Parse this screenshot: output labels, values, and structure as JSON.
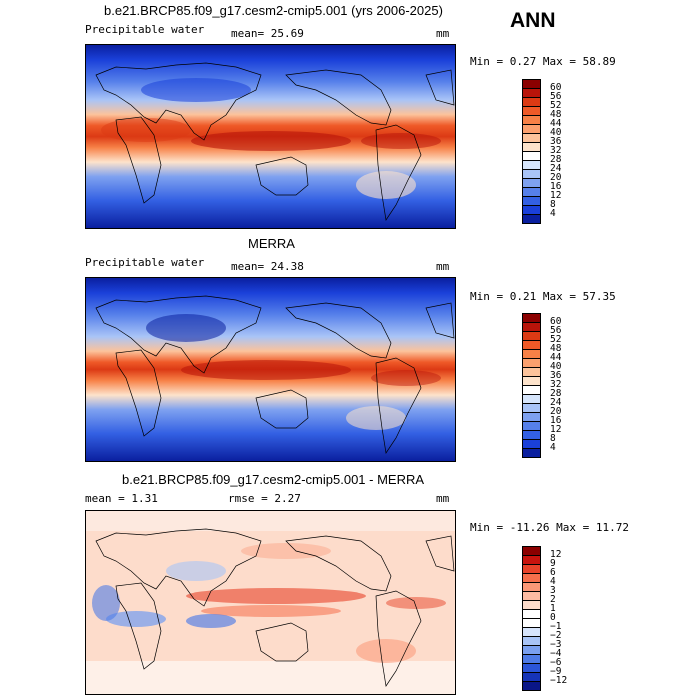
{
  "season": "ANN",
  "panels": [
    {
      "title": "b.e21.BRCP85.f09_g17.cesm2-cmip5.001 (yrs 2006-2025)",
      "left_label": "Precipitable water",
      "mean_text": "mean=  25.69",
      "units": "mm",
      "minmax_text": "Min =   0.27 Max =  58.89",
      "colorbar": {
        "ticks": [
          "60",
          "56",
          "52",
          "48",
          "44",
          "40",
          "36",
          "32",
          "28",
          "24",
          "20",
          "16",
          "12",
          "8",
          "4"
        ],
        "colors": [
          "#8b0000",
          "#b8140a",
          "#dc3a14",
          "#ef5a28",
          "#f78147",
          "#fba06e",
          "#fcc39b",
          "#fde3cb",
          "#ffffff",
          "#d6e5fb",
          "#a9c4f7",
          "#7ea1f0",
          "#5680ea",
          "#3360e3",
          "#1a40d9",
          "#0a1f9f"
        ]
      }
    },
    {
      "title": "MERRA",
      "left_label": "Precipitable water",
      "mean_text": "mean=  24.38",
      "units": "mm",
      "minmax_text": "Min =   0.21 Max =  57.35",
      "colorbar": {
        "ticks": [
          "60",
          "56",
          "52",
          "48",
          "44",
          "40",
          "36",
          "32",
          "28",
          "24",
          "20",
          "16",
          "12",
          "8",
          "4"
        ],
        "colors": [
          "#8b0000",
          "#b8140a",
          "#dc3a14",
          "#ef5a28",
          "#f78147",
          "#fba06e",
          "#fcc39b",
          "#fde3cb",
          "#ffffff",
          "#d6e5fb",
          "#a9c4f7",
          "#7ea1f0",
          "#5680ea",
          "#3360e3",
          "#1a40d9",
          "#0a1f9f"
        ]
      }
    },
    {
      "title": "b.e21.BRCP85.f09_g17.cesm2-cmip5.001 - MERRA",
      "mean_text": "mean =   1.31",
      "rmse_text": "rmse =   2.27",
      "units": "mm",
      "minmax_text": "Min = -11.26 Max =  11.72",
      "colorbar": {
        "ticks": [
          "12",
          "9",
          "6",
          "4",
          "3",
          "2",
          "1",
          "0",
          "−1",
          "−2",
          "−3",
          "−4",
          "−6",
          "−9",
          "−12"
        ],
        "colors": [
          "#8b0000",
          "#c8140e",
          "#e8432a",
          "#f56f4c",
          "#fb9877",
          "#fdbba2",
          "#fddccb",
          "#ffffff",
          "#ffffff",
          "#d6e4fb",
          "#a8c4f6",
          "#7aa0ef",
          "#4e7be6",
          "#2b55d8",
          "#1634b8",
          "#0a1687"
        ]
      }
    }
  ],
  "chart_data": [
    {
      "type": "heatmap",
      "title": "b.e21.BRCP85.f09_g17.cesm2-cmip5.001 (yrs 2006-2025)",
      "variable": "Precipitable water",
      "units": "mm",
      "mean": 25.69,
      "min": 0.27,
      "max": 58.89,
      "contour_levels": [
        4,
        8,
        12,
        16,
        20,
        24,
        28,
        32,
        36,
        40,
        44,
        48,
        52,
        56,
        60
      ]
    },
    {
      "type": "heatmap",
      "title": "MERRA",
      "variable": "Precipitable water",
      "units": "mm",
      "mean": 24.38,
      "min": 0.21,
      "max": 57.35,
      "contour_levels": [
        4,
        8,
        12,
        16,
        20,
        24,
        28,
        32,
        36,
        40,
        44,
        48,
        52,
        56,
        60
      ]
    },
    {
      "type": "heatmap",
      "title": "b.e21.BRCP85.f09_g17.cesm2-cmip5.001 - MERRA",
      "units": "mm",
      "mean": 1.31,
      "rmse": 2.27,
      "min": -11.26,
      "max": 11.72,
      "contour_levels": [
        -12,
        -9,
        -6,
        -4,
        -3,
        -2,
        -1,
        0,
        1,
        2,
        3,
        4,
        6,
        9,
        12
      ]
    }
  ]
}
